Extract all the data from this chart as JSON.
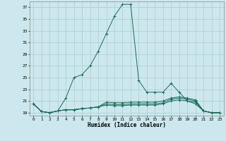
{
  "xlabel": "Humidex (Indice chaleur)",
  "background_color": "#cce8ee",
  "grid_color": "#aacccc",
  "line_color": "#1a6b5a",
  "xlim": [
    -0.5,
    23.5
  ],
  "ylim": [
    18.5,
    38.0
  ],
  "yticks": [
    19,
    21,
    23,
    25,
    27,
    29,
    31,
    33,
    35,
    37
  ],
  "xticks": [
    0,
    1,
    2,
    3,
    4,
    5,
    6,
    7,
    8,
    9,
    10,
    11,
    12,
    13,
    14,
    15,
    16,
    17,
    18,
    19,
    20,
    21,
    22,
    23
  ],
  "series": [
    [
      20.5,
      19.2,
      19.0,
      19.3,
      21.5,
      25.0,
      25.5,
      27.0,
      29.5,
      32.5,
      35.5,
      37.5,
      37.5,
      24.5,
      22.5,
      22.5,
      22.5,
      24.0,
      22.5,
      21.0,
      20.5,
      19.3,
      19.0,
      19.0
    ],
    [
      20.5,
      19.2,
      19.0,
      19.3,
      19.5,
      19.5,
      19.7,
      19.8,
      20.0,
      20.3,
      20.2,
      20.2,
      20.3,
      20.3,
      20.3,
      20.3,
      20.5,
      21.0,
      21.2,
      21.0,
      20.8,
      19.3,
      19.0,
      19.0
    ],
    [
      20.5,
      19.2,
      19.0,
      19.3,
      19.5,
      19.5,
      19.7,
      19.8,
      20.0,
      20.5,
      20.4,
      20.4,
      20.5,
      20.5,
      20.5,
      20.5,
      20.7,
      21.3,
      21.5,
      21.3,
      21.0,
      19.3,
      19.0,
      19.0
    ],
    [
      20.5,
      19.2,
      19.0,
      19.3,
      19.5,
      19.5,
      19.7,
      19.8,
      20.0,
      20.8,
      20.7,
      20.7,
      20.8,
      20.8,
      20.8,
      20.8,
      21.0,
      21.5,
      21.7,
      21.5,
      21.2,
      19.3,
      19.0,
      19.0
    ]
  ]
}
